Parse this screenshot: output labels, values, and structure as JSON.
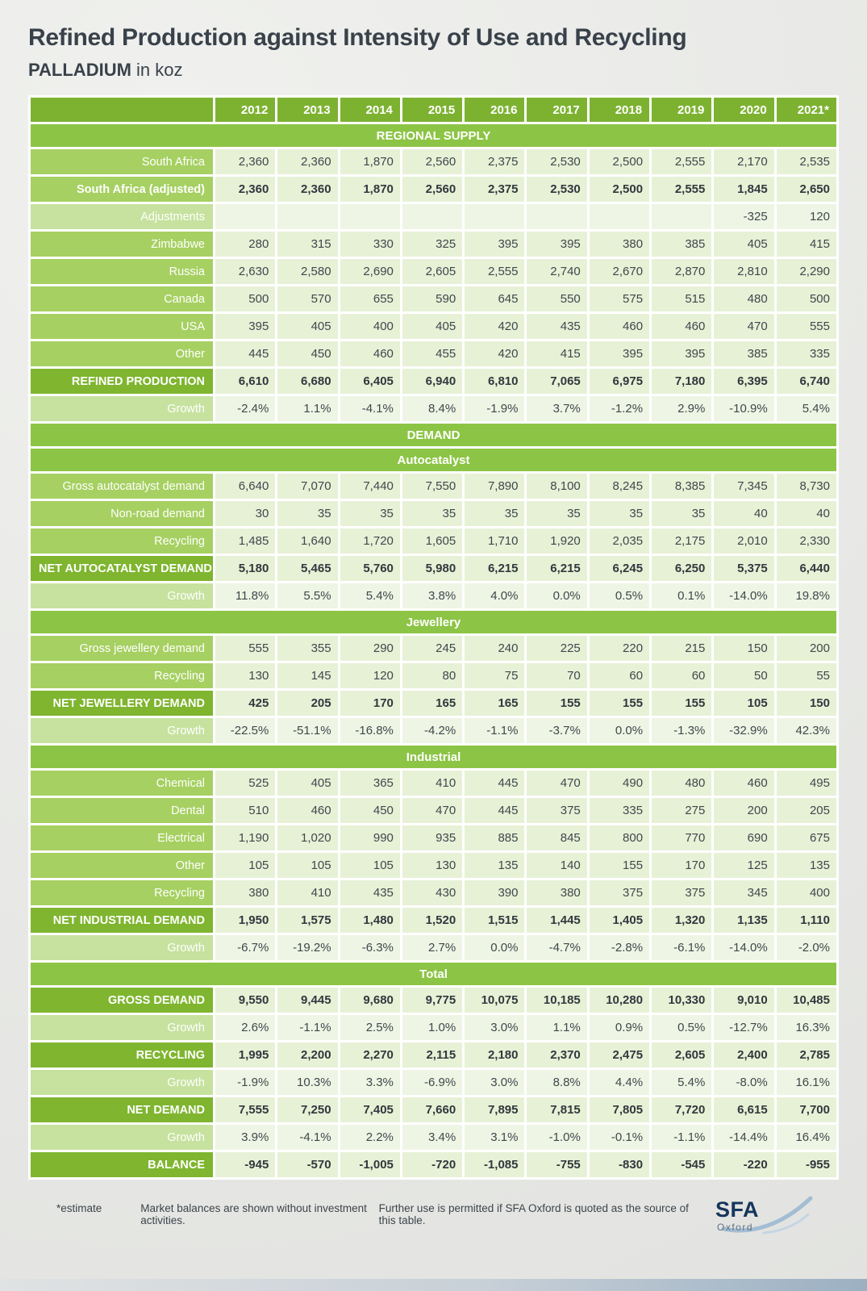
{
  "colors": {
    "header_green": "#7db231",
    "band_green": "#8cc445",
    "label_green": "#a6d061",
    "label_green_light": "#c6e29e",
    "cell_pale_green": "#e7f1d6",
    "title_color": "#39424b",
    "logo_navy": "#16365c"
  },
  "chart_data": {
    "type": "table",
    "title": "Refined Production against Intensity of Use and Recycling",
    "metal": "PALLADIUM",
    "unit_label": "in koz",
    "years": [
      "2012",
      "2013",
      "2014",
      "2015",
      "2016",
      "2017",
      "2018",
      "2019",
      "2020",
      "2021*"
    ],
    "sections": [
      {
        "header": "REGIONAL SUPPLY",
        "rows": [
          {
            "label": "South Africa",
            "style": "normal",
            "values": [
              "2,360",
              "2,360",
              "1,870",
              "2,560",
              "2,375",
              "2,530",
              "2,500",
              "2,555",
              "2,170",
              "2,535"
            ]
          },
          {
            "label": "South Africa (adjusted)",
            "style": "semibold",
            "values": [
              "2,360",
              "2,360",
              "1,870",
              "2,560",
              "2,375",
              "2,530",
              "2,500",
              "2,555",
              "1,845",
              "2,650"
            ]
          },
          {
            "label": "Adjustments",
            "style": "growth",
            "values": [
              "",
              "",
              "",
              "",
              "",
              "",
              "",
              "",
              "-325",
              "120"
            ]
          },
          {
            "label": "Zimbabwe",
            "style": "normal",
            "values": [
              "280",
              "315",
              "330",
              "325",
              "395",
              "395",
              "380",
              "385",
              "405",
              "415"
            ]
          },
          {
            "label": "Russia",
            "style": "normal",
            "values": [
              "2,630",
              "2,580",
              "2,690",
              "2,605",
              "2,555",
              "2,740",
              "2,670",
              "2,870",
              "2,810",
              "2,290"
            ]
          },
          {
            "label": "Canada",
            "style": "normal",
            "values": [
              "500",
              "570",
              "655",
              "590",
              "645",
              "550",
              "575",
              "515",
              "480",
              "500"
            ]
          },
          {
            "label": "USA",
            "style": "normal",
            "values": [
              "395",
              "405",
              "400",
              "405",
              "420",
              "435",
              "460",
              "460",
              "470",
              "555"
            ]
          },
          {
            "label": "Other",
            "style": "normal",
            "values": [
              "445",
              "450",
              "460",
              "455",
              "420",
              "415",
              "395",
              "395",
              "385",
              "335"
            ]
          },
          {
            "label": "REFINED PRODUCTION",
            "style": "bold",
            "values": [
              "6,610",
              "6,680",
              "6,405",
              "6,940",
              "6,810",
              "7,065",
              "6,975",
              "7,180",
              "6,395",
              "6,740"
            ]
          },
          {
            "label": "Growth",
            "style": "growth",
            "values": [
              "-2.4%",
              "1.1%",
              "-4.1%",
              "8.4%",
              "-1.9%",
              "3.7%",
              "-1.2%",
              "2.9%",
              "-10.9%",
              "5.4%"
            ]
          }
        ]
      },
      {
        "header": "DEMAND",
        "rows": []
      },
      {
        "header": "Autocatalyst",
        "rows": [
          {
            "label": "Gross autocatalyst demand",
            "style": "normal",
            "values": [
              "6,640",
              "7,070",
              "7,440",
              "7,550",
              "7,890",
              "8,100",
              "8,245",
              "8,385",
              "7,345",
              "8,730"
            ]
          },
          {
            "label": "Non-road demand",
            "style": "normal",
            "values": [
              "30",
              "35",
              "35",
              "35",
              "35",
              "35",
              "35",
              "35",
              "40",
              "40"
            ]
          },
          {
            "label": "Recycling",
            "style": "normal",
            "values": [
              "1,485",
              "1,640",
              "1,720",
              "1,605",
              "1,710",
              "1,920",
              "2,035",
              "2,175",
              "2,010",
              "2,330"
            ]
          },
          {
            "label": "NET AUTOCATALYST DEMAND",
            "style": "bold",
            "values": [
              "5,180",
              "5,465",
              "5,760",
              "5,980",
              "6,215",
              "6,215",
              "6,245",
              "6,250",
              "5,375",
              "6,440"
            ]
          },
          {
            "label": "Growth",
            "style": "growth",
            "values": [
              "11.8%",
              "5.5%",
              "5.4%",
              "3.8%",
              "4.0%",
              "0.0%",
              "0.5%",
              "0.1%",
              "-14.0%",
              "19.8%"
            ]
          }
        ]
      },
      {
        "header": "Jewellery",
        "rows": [
          {
            "label": "Gross jewellery demand",
            "style": "normal",
            "values": [
              "555",
              "355",
              "290",
              "245",
              "240",
              "225",
              "220",
              "215",
              "150",
              "200"
            ]
          },
          {
            "label": "Recycling",
            "style": "normal",
            "values": [
              "130",
              "145",
              "120",
              "80",
              "75",
              "70",
              "60",
              "60",
              "50",
              "55"
            ]
          },
          {
            "label": "NET JEWELLERY DEMAND",
            "style": "bold",
            "values": [
              "425",
              "205",
              "170",
              "165",
              "165",
              "155",
              "155",
              "155",
              "105",
              "150"
            ]
          },
          {
            "label": "Growth",
            "style": "growth",
            "values": [
              "-22.5%",
              "-51.1%",
              "-16.8%",
              "-4.2%",
              "-1.1%",
              "-3.7%",
              "0.0%",
              "-1.3%",
              "-32.9%",
              "42.3%"
            ]
          }
        ]
      },
      {
        "header": "Industrial",
        "rows": [
          {
            "label": "Chemical",
            "style": "normal",
            "values": [
              "525",
              "405",
              "365",
              "410",
              "445",
              "470",
              "490",
              "480",
              "460",
              "495"
            ]
          },
          {
            "label": "Dental",
            "style": "normal",
            "values": [
              "510",
              "460",
              "450",
              "470",
              "445",
              "375",
              "335",
              "275",
              "200",
              "205"
            ]
          },
          {
            "label": "Electrical",
            "style": "normal",
            "values": [
              "1,190",
              "1,020",
              "990",
              "935",
              "885",
              "845",
              "800",
              "770",
              "690",
              "675"
            ]
          },
          {
            "label": "Other",
            "style": "normal",
            "values": [
              "105",
              "105",
              "105",
              "130",
              "135",
              "140",
              "155",
              "170",
              "125",
              "135"
            ]
          },
          {
            "label": "Recycling",
            "style": "normal",
            "values": [
              "380",
              "410",
              "435",
              "430",
              "390",
              "380",
              "375",
              "375",
              "345",
              "400"
            ]
          },
          {
            "label": "NET INDUSTRIAL DEMAND",
            "style": "bold",
            "values": [
              "1,950",
              "1,575",
              "1,480",
              "1,520",
              "1,515",
              "1,445",
              "1,405",
              "1,320",
              "1,135",
              "1,110"
            ]
          },
          {
            "label": "Growth",
            "style": "growth",
            "values": [
              "-6.7%",
              "-19.2%",
              "-6.3%",
              "2.7%",
              "0.0%",
              "-4.7%",
              "-2.8%",
              "-6.1%",
              "-14.0%",
              "-2.0%"
            ]
          }
        ]
      },
      {
        "header": "Total",
        "rows": [
          {
            "label": "GROSS DEMAND",
            "style": "bold",
            "values": [
              "9,550",
              "9,445",
              "9,680",
              "9,775",
              "10,075",
              "10,185",
              "10,280",
              "10,330",
              "9,010",
              "10,485"
            ]
          },
          {
            "label": "Growth",
            "style": "growth",
            "values": [
              "2.6%",
              "-1.1%",
              "2.5%",
              "1.0%",
              "3.0%",
              "1.1%",
              "0.9%",
              "0.5%",
              "-12.7%",
              "16.3%"
            ]
          },
          {
            "label": "RECYCLING",
            "style": "bold",
            "values": [
              "1,995",
              "2,200",
              "2,270",
              "2,115",
              "2,180",
              "2,370",
              "2,475",
              "2,605",
              "2,400",
              "2,785"
            ]
          },
          {
            "label": "Growth",
            "style": "growth",
            "values": [
              "-1.9%",
              "10.3%",
              "3.3%",
              "-6.9%",
              "3.0%",
              "8.8%",
              "4.4%",
              "5.4%",
              "-8.0%",
              "16.1%"
            ]
          },
          {
            "label": "NET DEMAND",
            "style": "bold",
            "values": [
              "7,555",
              "7,250",
              "7,405",
              "7,660",
              "7,895",
              "7,815",
              "7,805",
              "7,720",
              "6,615",
              "7,700"
            ]
          },
          {
            "label": "Growth",
            "style": "growth",
            "values": [
              "3.9%",
              "-4.1%",
              "2.2%",
              "3.4%",
              "3.1%",
              "-1.0%",
              "-0.1%",
              "-1.1%",
              "-14.4%",
              "16.4%"
            ]
          },
          {
            "label": "BALANCE",
            "style": "bold",
            "values": [
              "-945",
              "-570",
              "-1,005",
              "-720",
              "-1,085",
              "-755",
              "-830",
              "-545",
              "-220",
              "-955"
            ]
          }
        ]
      }
    ]
  },
  "footer": {
    "estimate": "*estimate",
    "note1": "Market balances are shown without investment activities.",
    "note2": "Further use is permitted if SFA Oxford is quoted as the source of this table.",
    "logo_sfa": "SFA",
    "logo_oxford": "Oxford"
  }
}
